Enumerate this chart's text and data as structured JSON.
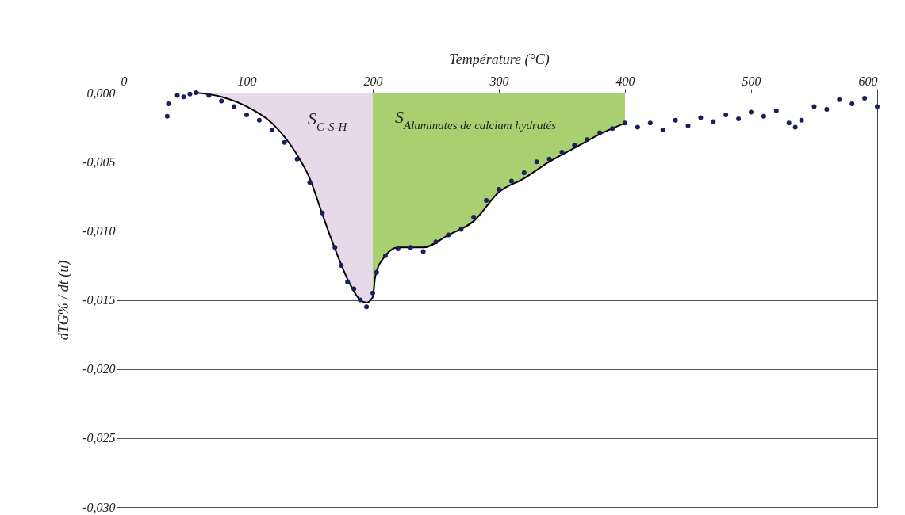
{
  "chart_data": {
    "type": "scatter",
    "xlabel": "Température (°C)",
    "ylabel": "dTG% / dt (u)",
    "xlim": [
      0,
      600
    ],
    "xticks": [
      0,
      100,
      200,
      300,
      400,
      500,
      600
    ],
    "ylim": [
      -0.03,
      0
    ],
    "yticks": [
      {
        "value": 0,
        "label": "0,000"
      },
      {
        "value": -0.005,
        "label": "-0,005"
      },
      {
        "value": -0.01,
        "label": "-0,010"
      },
      {
        "value": -0.015,
        "label": "-0,015"
      },
      {
        "value": -0.02,
        "label": "-0,020"
      },
      {
        "value": -0.025,
        "label": "-0,025"
      },
      {
        "value": -0.03,
        "label": "-0,030"
      }
    ],
    "grid": "y",
    "x": [
      37,
      38,
      45,
      50,
      55,
      60,
      70,
      80,
      90,
      100,
      110,
      120,
      130,
      140,
      150,
      160,
      170,
      175,
      180,
      185,
      190,
      195,
      200,
      203,
      210,
      220,
      230,
      240,
      250,
      260,
      270,
      280,
      290,
      300,
      310,
      320,
      330,
      340,
      350,
      360,
      370,
      380,
      390,
      400,
      410,
      420,
      430,
      440,
      450,
      460,
      470,
      480,
      490,
      500,
      510,
      520,
      530,
      535,
      540,
      550,
      560,
      570,
      580,
      590,
      600
    ],
    "annotations": [
      "S$_{C-S-H}$",
      "S$_{Aluminates de calcium hydratés}$"
    ],
    "series": [
      {
        "type": "area",
        "marker": "none",
        "color": "#e8d9ea",
        "x": [
          60,
          80,
          100,
          120,
          140,
          150,
          160,
          170,
          180,
          190,
          195,
          200
        ],
        "values": [
          0,
          -0.0003,
          -0.001,
          -0.0022,
          -0.0045,
          -0.0062,
          -0.0088,
          -0.0113,
          -0.0135,
          -0.015,
          -0.0152,
          -0.0148
        ]
      },
      {
        "type": "area",
        "marker": "none",
        "color": "#a8d070",
        "x": [
          200,
          202,
          210,
          220,
          240,
          260,
          280,
          300,
          320,
          340,
          360,
          380,
          400
        ],
        "values": [
          -0.0148,
          -0.0133,
          -0.0118,
          -0.0112,
          -0.0112,
          -0.0103,
          -0.0093,
          -0.0072,
          -0.0062,
          -0.005,
          -0.004,
          -0.003,
          -0.0022
        ]
      },
      {
        "type": "line",
        "marker": "none",
        "color": "#000000",
        "x": [
          60,
          80,
          100,
          120,
          140,
          150,
          160,
          170,
          180,
          190,
          195,
          200,
          202,
          210,
          220,
          240,
          260,
          280,
          300,
          320,
          340,
          360,
          380,
          400
        ],
        "values": [
          0,
          -0.0003,
          -0.001,
          -0.0022,
          -0.0045,
          -0.0062,
          -0.0088,
          -0.0113,
          -0.0135,
          -0.015,
          -0.0152,
          -0.0148,
          -0.0133,
          -0.0118,
          -0.0112,
          -0.0112,
          -0.0103,
          -0.0093,
          -0.0072,
          -0.0062,
          -0.005,
          -0.004,
          -0.003,
          -0.0022
        ]
      },
      {
        "marker": "circle",
        "color": "#1a1f5c",
        "values": [
          -0.0017,
          -0.0008,
          -0.0002,
          -0.0003,
          -0.0001,
          0,
          -0.0002,
          -0.0006,
          -0.001,
          -0.0016,
          -0.002,
          -0.0027,
          -0.0036,
          -0.0048,
          -0.0065,
          -0.0087,
          -0.0112,
          -0.0125,
          -0.0137,
          -0.0142,
          -0.015,
          -0.0155,
          -0.0145,
          -0.013,
          -0.0118,
          -0.0113,
          -0.0112,
          -0.0115,
          -0.0108,
          -0.0103,
          -0.0099,
          -0.009,
          -0.0078,
          -0.007,
          -0.0064,
          -0.0058,
          -0.005,
          -0.0048,
          -0.0043,
          -0.0038,
          -0.0034,
          -0.0029,
          -0.0026,
          -0.0022,
          -0.0025,
          -0.0022,
          -0.0027,
          -0.002,
          -0.0024,
          -0.0018,
          -0.0021,
          -0.0016,
          -0.0019,
          -0.0014,
          -0.0017,
          -0.0013,
          -0.0022,
          -0.0025,
          -0.002,
          -0.001,
          -0.0012,
          -0.0005,
          -0.0008,
          -0.0004,
          -0.001
        ]
      }
    ]
  }
}
